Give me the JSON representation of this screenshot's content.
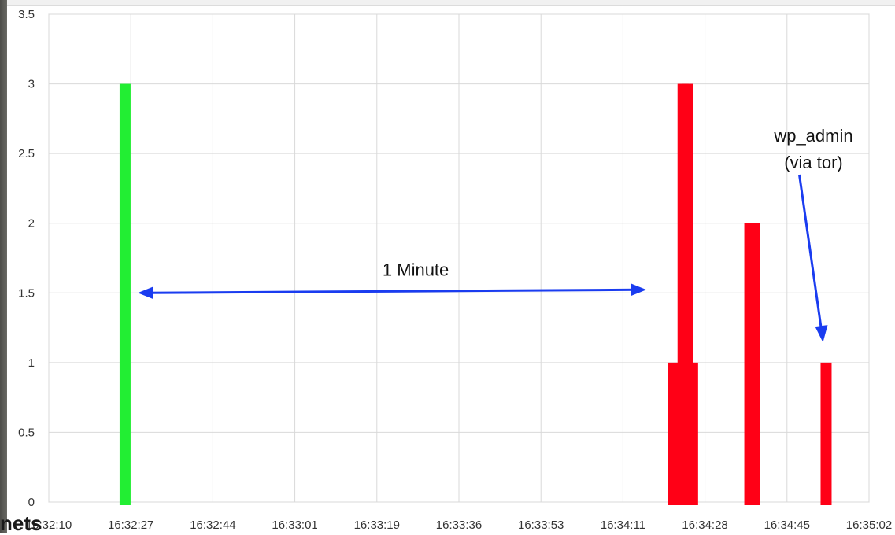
{
  "chart_data": {
    "type": "bar",
    "title": "",
    "xlabel": "",
    "ylabel": "",
    "ylim": [
      0,
      3.5
    ],
    "y_ticks": [
      "0",
      "0.5",
      "1",
      "1.5",
      "2",
      "2.5",
      "3",
      "3.5"
    ],
    "x_ticks": [
      "16:32:10",
      "16:32:27",
      "16:32:44",
      "16:33:01",
      "16:33:19",
      "16:33:36",
      "16:33:53",
      "16:34:11",
      "16:34:28",
      "16:34:45",
      "16:35:02"
    ],
    "grid": true,
    "series": [
      {
        "color": "#22ee33",
        "values": [
          {
            "x": "16:32:26",
            "y": 3
          }
        ]
      },
      {
        "color": "#ff0016",
        "values": [
          {
            "x": "16:34:21",
            "y": 1
          },
          {
            "x": "16:34:23",
            "y": 3
          },
          {
            "x": "16:34:24",
            "y": 3
          },
          {
            "x": "16:34:25",
            "y": 1
          },
          {
            "x": "16:34:37",
            "y": 2
          },
          {
            "x": "16:34:38",
            "y": 2
          },
          {
            "x": "16:34:53",
            "y": 1
          }
        ]
      }
    ],
    "annotations": [
      {
        "text": "1 Minute",
        "color": "#1a3cf0",
        "from_x": "16:32:27",
        "to_x": "16:34:14",
        "at_y": 1.5
      },
      {
        "text_lines": [
          "wp_admin",
          "(via tor)"
        ],
        "color": "#1a3cf0",
        "points_to": {
          "x": "16:34:53",
          "y": 1.1
        }
      }
    ]
  },
  "background_fragment": "nets"
}
